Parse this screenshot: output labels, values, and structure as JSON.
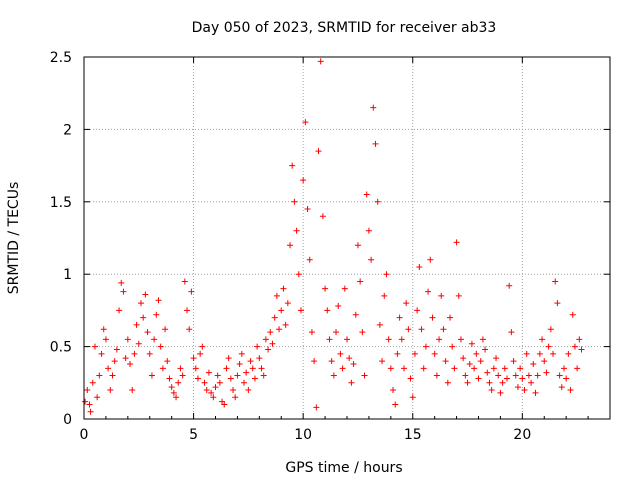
{
  "chart_data": {
    "type": "scatter",
    "title": "Day 050 of 2023, SRMTID for receiver ab33",
    "xlabel": "GPS time / hours",
    "ylabel": "SRMTID / TECUs",
    "xlim": [
      0,
      24
    ],
    "ylim": [
      0,
      2.5
    ],
    "xticks": [
      0,
      5,
      10,
      15,
      20
    ],
    "xtick_labels": [
      "0",
      "5",
      "10",
      "15",
      "20"
    ],
    "yticks": [
      0,
      0.5,
      1,
      1.5,
      2,
      2.5
    ],
    "ytick_labels": [
      "0",
      "0.5",
      "1",
      "1.5",
      "2",
      "2.5"
    ],
    "grid": true,
    "marker": "plus",
    "color": "#ff0000",
    "series": [
      {
        "name": "SRMTID",
        "points": [
          [
            0.05,
            0.12
          ],
          [
            0.15,
            0.2
          ],
          [
            0.25,
            0.1
          ],
          [
            0.3,
            0.05
          ],
          [
            0.4,
            0.25
          ],
          [
            0.5,
            0.5
          ],
          [
            0.6,
            0.15
          ],
          [
            0.7,
            0.3
          ],
          [
            0.8,
            0.45
          ],
          [
            0.9,
            0.62
          ],
          [
            1.0,
            0.55
          ],
          [
            1.1,
            0.35
          ],
          [
            1.2,
            0.2
          ],
          [
            1.3,
            0.3
          ],
          [
            1.4,
            0.4
          ],
          [
            1.5,
            0.48
          ],
          [
            1.6,
            0.75
          ],
          [
            1.7,
            0.94
          ],
          [
            1.8,
            0.88
          ],
          [
            1.9,
            0.42
          ],
          [
            2.0,
            0.55
          ],
          [
            2.1,
            0.38
          ],
          [
            2.2,
            0.2
          ],
          [
            2.3,
            0.45
          ],
          [
            2.4,
            0.65
          ],
          [
            2.5,
            0.52
          ],
          [
            2.6,
            0.8
          ],
          [
            2.7,
            0.7
          ],
          [
            2.8,
            0.86
          ],
          [
            2.9,
            0.6
          ],
          [
            3.0,
            0.45
          ],
          [
            3.1,
            0.3
          ],
          [
            3.2,
            0.55
          ],
          [
            3.3,
            0.72
          ],
          [
            3.4,
            0.82
          ],
          [
            3.5,
            0.5
          ],
          [
            3.6,
            0.35
          ],
          [
            3.7,
            0.62
          ],
          [
            3.8,
            0.4
          ],
          [
            3.9,
            0.28
          ],
          [
            4.0,
            0.22
          ],
          [
            4.1,
            0.18
          ],
          [
            4.2,
            0.15
          ],
          [
            4.3,
            0.25
          ],
          [
            4.4,
            0.35
          ],
          [
            4.5,
            0.3
          ],
          [
            4.6,
            0.95
          ],
          [
            4.7,
            0.75
          ],
          [
            4.8,
            0.62
          ],
          [
            4.9,
            0.88
          ],
          [
            5.0,
            0.42
          ],
          [
            5.1,
            0.35
          ],
          [
            5.2,
            0.28
          ],
          [
            5.3,
            0.45
          ],
          [
            5.4,
            0.5
          ],
          [
            5.5,
            0.25
          ],
          [
            5.6,
            0.2
          ],
          [
            5.7,
            0.32
          ],
          [
            5.8,
            0.18
          ],
          [
            5.9,
            0.15
          ],
          [
            6.0,
            0.22
          ],
          [
            6.1,
            0.3
          ],
          [
            6.2,
            0.25
          ],
          [
            6.3,
            0.12
          ],
          [
            6.4,
            0.1
          ],
          [
            6.5,
            0.35
          ],
          [
            6.6,
            0.42
          ],
          [
            6.7,
            0.28
          ],
          [
            6.8,
            0.2
          ],
          [
            6.9,
            0.15
          ],
          [
            7.0,
            0.3
          ],
          [
            7.1,
            0.38
          ],
          [
            7.2,
            0.45
          ],
          [
            7.3,
            0.25
          ],
          [
            7.4,
            0.32
          ],
          [
            7.5,
            0.2
          ],
          [
            7.6,
            0.4
          ],
          [
            7.7,
            0.35
          ],
          [
            7.8,
            0.28
          ],
          [
            7.9,
            0.5
          ],
          [
            8.0,
            0.42
          ],
          [
            8.1,
            0.35
          ],
          [
            8.2,
            0.3
          ],
          [
            8.3,
            0.55
          ],
          [
            8.4,
            0.48
          ],
          [
            8.5,
            0.6
          ],
          [
            8.6,
            0.52
          ],
          [
            8.7,
            0.7
          ],
          [
            8.8,
            0.85
          ],
          [
            8.9,
            0.62
          ],
          [
            9.0,
            0.75
          ],
          [
            9.1,
            0.9
          ],
          [
            9.2,
            0.65
          ],
          [
            9.3,
            0.8
          ],
          [
            9.4,
            1.2
          ],
          [
            9.5,
            1.75
          ],
          [
            9.6,
            1.5
          ],
          [
            9.7,
            1.3
          ],
          [
            9.8,
            1.0
          ],
          [
            9.9,
            0.75
          ],
          [
            10.0,
            1.65
          ],
          [
            10.1,
            2.05
          ],
          [
            10.2,
            1.45
          ],
          [
            10.3,
            1.1
          ],
          [
            10.4,
            0.6
          ],
          [
            10.5,
            0.4
          ],
          [
            10.6,
            0.08
          ],
          [
            10.7,
            1.85
          ],
          [
            10.8,
            2.47
          ],
          [
            10.9,
            1.4
          ],
          [
            11.0,
            0.9
          ],
          [
            11.1,
            0.75
          ],
          [
            11.2,
            0.55
          ],
          [
            11.3,
            0.4
          ],
          [
            11.4,
            0.3
          ],
          [
            11.5,
            0.6
          ],
          [
            11.6,
            0.78
          ],
          [
            11.7,
            0.45
          ],
          [
            11.8,
            0.35
          ],
          [
            11.9,
            0.9
          ],
          [
            12.0,
            0.55
          ],
          [
            12.1,
            0.42
          ],
          [
            12.2,
            0.25
          ],
          [
            12.3,
            0.38
          ],
          [
            12.4,
            0.72
          ],
          [
            12.5,
            1.2
          ],
          [
            12.6,
            0.95
          ],
          [
            12.7,
            0.6
          ],
          [
            12.8,
            0.3
          ],
          [
            12.9,
            1.55
          ],
          [
            13.0,
            1.3
          ],
          [
            13.1,
            1.1
          ],
          [
            13.2,
            2.15
          ],
          [
            13.3,
            1.9
          ],
          [
            13.4,
            1.5
          ],
          [
            13.5,
            0.65
          ],
          [
            13.6,
            0.4
          ],
          [
            13.7,
            0.85
          ],
          [
            13.8,
            1.0
          ],
          [
            13.9,
            0.55
          ],
          [
            14.0,
            0.35
          ],
          [
            14.1,
            0.2
          ],
          [
            14.2,
            0.1
          ],
          [
            14.3,
            0.45
          ],
          [
            14.4,
            0.7
          ],
          [
            14.5,
            0.55
          ],
          [
            14.6,
            0.35
          ],
          [
            14.7,
            0.8
          ],
          [
            14.8,
            0.62
          ],
          [
            14.9,
            0.28
          ],
          [
            15.0,
            0.15
          ],
          [
            15.1,
            0.45
          ],
          [
            15.2,
            0.75
          ],
          [
            15.3,
            1.05
          ],
          [
            15.4,
            0.62
          ],
          [
            15.5,
            0.35
          ],
          [
            15.6,
            0.5
          ],
          [
            15.7,
            0.88
          ],
          [
            15.8,
            1.1
          ],
          [
            15.9,
            0.7
          ],
          [
            16.0,
            0.45
          ],
          [
            16.1,
            0.3
          ],
          [
            16.2,
            0.55
          ],
          [
            16.3,
            0.85
          ],
          [
            16.4,
            0.62
          ],
          [
            16.5,
            0.4
          ],
          [
            16.6,
            0.25
          ],
          [
            16.7,
            0.7
          ],
          [
            16.8,
            0.5
          ],
          [
            16.9,
            0.35
          ],
          [
            17.0,
            1.22
          ],
          [
            17.1,
            0.85
          ],
          [
            17.2,
            0.55
          ],
          [
            17.3,
            0.42
          ],
          [
            17.4,
            0.3
          ],
          [
            17.5,
            0.25
          ],
          [
            17.6,
            0.38
          ],
          [
            17.7,
            0.52
          ],
          [
            17.8,
            0.35
          ],
          [
            17.9,
            0.45
          ],
          [
            18.0,
            0.28
          ],
          [
            18.1,
            0.4
          ],
          [
            18.2,
            0.55
          ],
          [
            18.3,
            0.48
          ],
          [
            18.4,
            0.32
          ],
          [
            18.5,
            0.25
          ],
          [
            18.6,
            0.2
          ],
          [
            18.7,
            0.35
          ],
          [
            18.8,
            0.42
          ],
          [
            18.9,
            0.3
          ],
          [
            19.0,
            0.18
          ],
          [
            19.1,
            0.25
          ],
          [
            19.2,
            0.35
          ],
          [
            19.3,
            0.28
          ],
          [
            19.4,
            0.92
          ],
          [
            19.5,
            0.6
          ],
          [
            19.6,
            0.4
          ],
          [
            19.7,
            0.3
          ],
          [
            19.8,
            0.22
          ],
          [
            19.9,
            0.35
          ],
          [
            20.0,
            0.28
          ],
          [
            20.1,
            0.2
          ],
          [
            20.2,
            0.45
          ],
          [
            20.3,
            0.3
          ],
          [
            20.4,
            0.25
          ],
          [
            20.5,
            0.38
          ],
          [
            20.6,
            0.18
          ],
          [
            20.7,
            0.3
          ],
          [
            20.8,
            0.45
          ],
          [
            20.9,
            0.55
          ],
          [
            21.0,
            0.4
          ],
          [
            21.1,
            0.32
          ],
          [
            21.2,
            0.5
          ],
          [
            21.3,
            0.62
          ],
          [
            21.4,
            0.45
          ],
          [
            21.5,
            0.95
          ],
          [
            21.6,
            0.8
          ],
          [
            21.7,
            0.3
          ],
          [
            21.8,
            0.22
          ],
          [
            21.9,
            0.35
          ],
          [
            22.0,
            0.28
          ],
          [
            22.1,
            0.45
          ],
          [
            22.2,
            0.2
          ],
          [
            22.3,
            0.72
          ],
          [
            22.4,
            0.5
          ],
          [
            22.5,
            0.35
          ],
          [
            22.6,
            0.55
          ],
          [
            22.7,
            0.48
          ]
        ]
      }
    ]
  }
}
